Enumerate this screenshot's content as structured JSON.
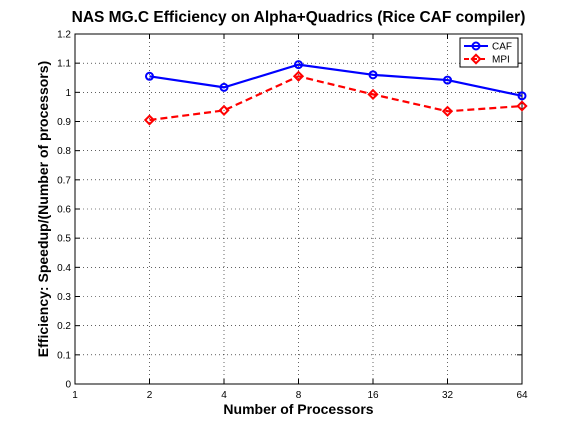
{
  "chart_data": {
    "type": "line",
    "title": "NAS MG.C Efficiency on Alpha+Quadrics (Rice CAF compiler)",
    "xlabel": "Number of Processors",
    "ylabel": "Efficiency: Speedup/(Number of processors)",
    "categories": [
      "1",
      "2",
      "4",
      "8",
      "16",
      "32",
      "64"
    ],
    "ylim": [
      0,
      1.2
    ],
    "yticks": [
      "0",
      "0.1",
      "0.2",
      "0.3",
      "0.4",
      "0.5",
      "0.6",
      "0.7",
      "0.8",
      "0.9",
      "1",
      "1.1",
      "1.2"
    ],
    "grid": true,
    "legend_position": "top-right",
    "series": [
      {
        "name": "CAF",
        "color": "#0000ff",
        "marker": "circle",
        "line_style": "solid",
        "x": [
          "2",
          "4",
          "8",
          "16",
          "32",
          "64"
        ],
        "values": [
          1.055,
          1.017,
          1.095,
          1.06,
          1.042,
          0.988
        ]
      },
      {
        "name": "MPI",
        "color": "#ff0000",
        "marker": "diamond",
        "line_style": "dashed",
        "x": [
          "2",
          "4",
          "8",
          "16",
          "32",
          "64"
        ],
        "values": [
          0.905,
          0.938,
          1.055,
          0.993,
          0.935,
          0.953
        ]
      }
    ]
  }
}
